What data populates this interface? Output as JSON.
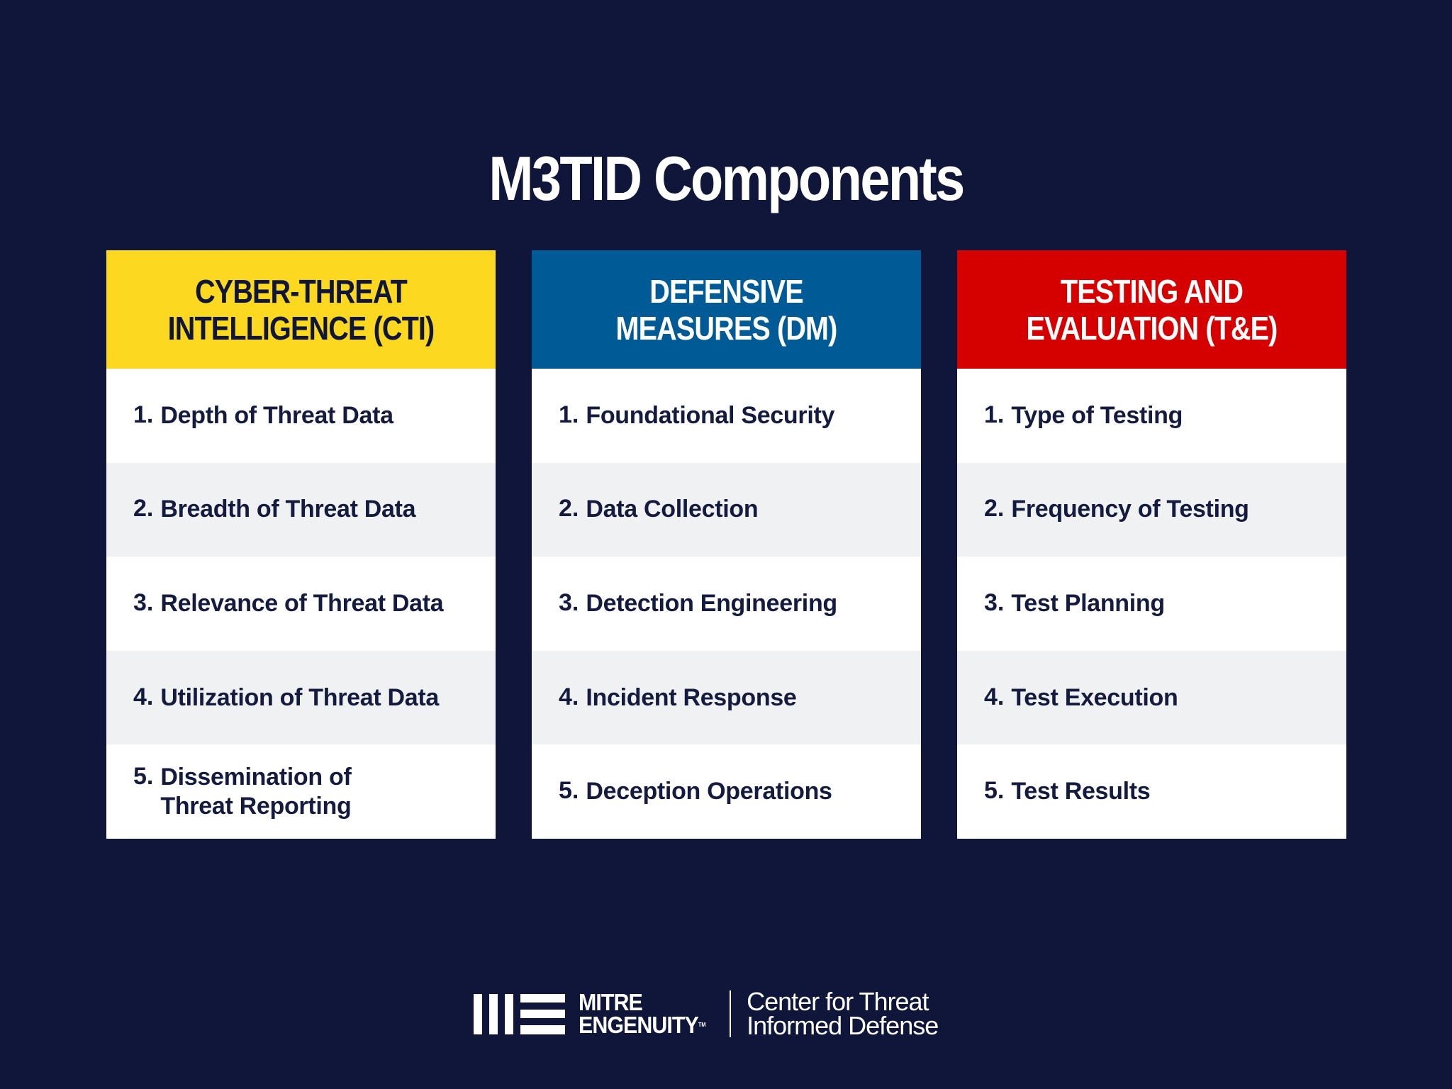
{
  "page": {
    "title": "M3TID Components",
    "background_color": "#10163a"
  },
  "columns": [
    {
      "header": "CYBER-THREAT\nINTELLIGENCE (CTI)",
      "header_color": "#fcd920",
      "header_text_color": "#10163a",
      "items": [
        {
          "num": "1.",
          "text": "Depth of Threat Data"
        },
        {
          "num": "2.",
          "text": "Breadth of Threat Data"
        },
        {
          "num": "3.",
          "text": "Relevance of Threat Data"
        },
        {
          "num": "4.",
          "text": "Utilization of Threat Data"
        },
        {
          "num": "5.",
          "text": "Dissemination of\nThreat Reporting"
        }
      ]
    },
    {
      "header": "DEFENSIVE\nMEASURES (DM)",
      "header_color": "#005a96",
      "header_text_color": "#ffffff",
      "items": [
        {
          "num": "1.",
          "text": "Foundational Security"
        },
        {
          "num": "2.",
          "text": "Data Collection"
        },
        {
          "num": "3.",
          "text": "Detection Engineering"
        },
        {
          "num": "4.",
          "text": "Incident Response"
        },
        {
          "num": "5.",
          "text": "Deception Operations"
        }
      ]
    },
    {
      "header": "TESTING AND\nEVALUATION (T&E)",
      "header_color": "#d50000",
      "header_text_color": "#ffffff",
      "items": [
        {
          "num": "1.",
          "text": "Type of Testing"
        },
        {
          "num": "2.",
          "text": "Frequency of Testing"
        },
        {
          "num": "3.",
          "text": "Test Planning"
        },
        {
          "num": "4.",
          "text": "Test Execution"
        },
        {
          "num": "5.",
          "text": "Test Results"
        }
      ]
    }
  ],
  "footer": {
    "logo_icon": "mitre-engenuity-logo-icon",
    "wordmark_line1": "MITRE",
    "wordmark_line2": "ENGENUITY",
    "trademark": "TM",
    "center_name": "Center for Threat\nInformed Defense"
  }
}
